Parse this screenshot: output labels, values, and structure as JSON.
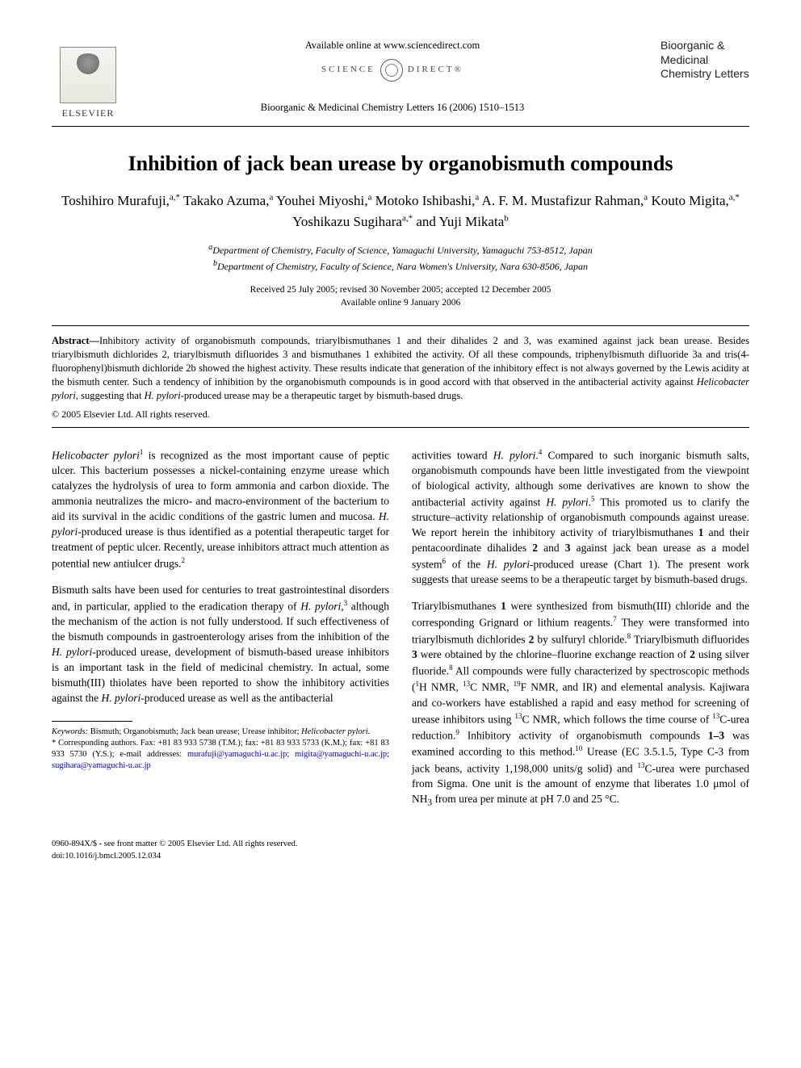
{
  "header": {
    "elsevier_label": "ELSEVIER",
    "available_line": "Available online at www.sciencedirect.com",
    "sd_left": "SCIENCE",
    "sd_right": "DIRECT®",
    "citation": "Bioorganic & Medicinal Chemistry Letters 16 (2006) 1510–1513",
    "journal_name": "Bioorganic & Medicinal Chemistry Letters"
  },
  "title": "Inhibition of jack bean urease by organobismuth compounds",
  "authors_html": "Toshihiro Murafuji,<sup>a,*</sup> Takako Azuma,<sup>a</sup> Youhei Miyoshi,<sup>a</sup> Motoko Ishibashi,<sup>a</sup> A. F. M. Mustafizur Rahman,<sup>a</sup> Kouto Migita,<sup>a,*</sup> Yoshikazu Sugihara<sup>a,*</sup> and Yuji Mikata<sup>b</sup>",
  "affiliations": {
    "a": "Department of Chemistry, Faculty of Science, Yamaguchi University, Yamaguchi 753-8512, Japan",
    "b": "Department of Chemistry, Faculty of Science, Nara Women's University, Nara 630-8506, Japan"
  },
  "dates": {
    "line1": "Received 25 July 2005; revised 30 November 2005; accepted 12 December 2005",
    "line2": "Available online 9 January 2006"
  },
  "abstract": {
    "label": "Abstract—",
    "text_part1": "Inhibitory activity of organobismuth compounds, triarylbismuthanes 1 and their dihalides 2 and 3, was examined against jack bean urease. Besides triarylbismuth dichlorides 2, triarylbismuth difluorides 3 and bismuthanes 1 exhibited the activity. Of all these compounds, triphenylbismuth difluoride 3a and tris(4-fluorophenyl)bismuth dichloride 2b showed the highest activity. These results indicate that generation of the inhibitory effect is not always governed by the Lewis acidity at the bismuth center. Such a tendency of inhibition by the organobismuth compounds is in good accord with that observed in the antibacterial activity against ",
    "em1": "Helicobacter pylori",
    "text_part2": ", suggesting that ",
    "em2": "H. pylori",
    "text_part3": "-produced urease may be a therapeutic target by bismuth-based drugs."
  },
  "copyright": "© 2005 Elsevier Ltd. All rights reserved.",
  "body": {
    "left": {
      "p1_html": "<i>Helicobacter pylori</i><sup>1</sup> is recognized as the most important cause of peptic ulcer. This bacterium possesses a nickel-containing enzyme urease which catalyzes the hydrolysis of urea to form ammonia and carbon dioxide. The ammonia neutralizes the micro- and macro-environment of the bacterium to aid its survival in the acidic conditions of the gastric lumen and mucosa. <i>H. pylori</i>-produced urease is thus identified as a potential therapeutic target for treatment of peptic ulcer. Recently, urease inhibitors attract much attention as potential new antiulcer drugs.<sup>2</sup>",
      "p2_html": "Bismuth salts have been used for centuries to treat gastrointestinal disorders and, in particular, applied to the eradication therapy of <i>H. pylori</i>,<sup>3</sup> although the mechanism of the action is not fully understood. If such effectiveness of the bismuth compounds in gastroenterology arises from the inhibition of the <i>H. pylori</i>-produced urease, development of bismuth-based urease inhibitors is an important task in the field of medicinal chemistry. In actual, some bismuth(III) thiolates have been reported to show the inhibitory activities against the <i>H. pylori</i>-produced urease as well as the antibacterial"
    },
    "right": {
      "p1_html": "activities toward <i>H. pylori</i>.<sup>4</sup> Compared to such inorganic bismuth salts, organobismuth compounds have been little investigated from the viewpoint of biological activity, although some derivatives are known to show the antibacterial activity against <i>H. pylori</i>.<sup>5</sup> This promoted us to clarify the structure–activity relationship of organobismuth compounds against urease. We report herein the inhibitory activity of triarylbismuthanes <b>1</b> and their pentacoordinate dihalides <b>2</b> and <b>3</b> against jack bean urease as a model system<sup>6</sup> of the <i>H. pylori</i>-produced urease (Chart 1). The present work suggests that urease seems to be a therapeutic target by bismuth-based drugs.",
      "p2_html": "Triarylbismuthanes <b>1</b> were synthesized from bismuth(III) chloride and the corresponding Grignard or lithium reagents.<sup>7</sup> They were transformed into triarylbismuth dichlorides <b>2</b> by sulfuryl chloride.<sup>8</sup> Triarylbismuth difluorides <b>3</b> were obtained by the chlorine–fluorine exchange reaction of <b>2</b> using silver fluoride.<sup>8</sup> All compounds were fully characterized by spectroscopic methods (<sup>1</sup>H NMR, <sup>13</sup>C NMR, <sup>19</sup>F NMR, and IR) and elemental analysis. Kajiwara and co-workers have established a rapid and easy method for screening of urease inhibitors using <sup>13</sup>C NMR, which follows the time course of <sup>13</sup>C-urea reduction.<sup>9</sup> Inhibitory activity of organobismuth compounds <b>1–3</b> was examined according to this method.<sup>10</sup> Urease (EC 3.5.1.5, Type C-3 from jack beans, activity 1,198,000 units/g solid) and <sup>13</sup>C-urea were purchased from Sigma. One unit is the amount of enzyme that liberates 1.0 μmol of NH<sub>3</sub> from urea per minute at pH 7.0 and 25 °C."
    }
  },
  "footnotes": {
    "keywords_label": "Keywords:",
    "keywords": " Bismuth; Organobismuth; Jack bean urease; Urease inhibitor; ",
    "keywords_em": "Helicobacter pylori.",
    "corr_label": "* Corresponding authors. ",
    "corr_text": "Fax: +81 83 933 5738 (T.M.); fax: +81 83 933 5733 (K.M.); fax: +81 83 933 5730 (Y.S.); e-mail addresses: ",
    "emails": [
      "murafuji@yamaguchi-u.ac.jp",
      "migita@yamaguchi-u.ac.jp",
      "sugihara@yamaguchi-u.ac.jp"
    ]
  },
  "footer": {
    "line1": "0960-894X/$ - see front matter © 2005 Elsevier Ltd. All rights reserved.",
    "line2": "doi:10.1016/j.bmcl.2005.12.034"
  },
  "colors": {
    "text": "#000000",
    "link": "#0000cc",
    "bg": "#ffffff"
  }
}
